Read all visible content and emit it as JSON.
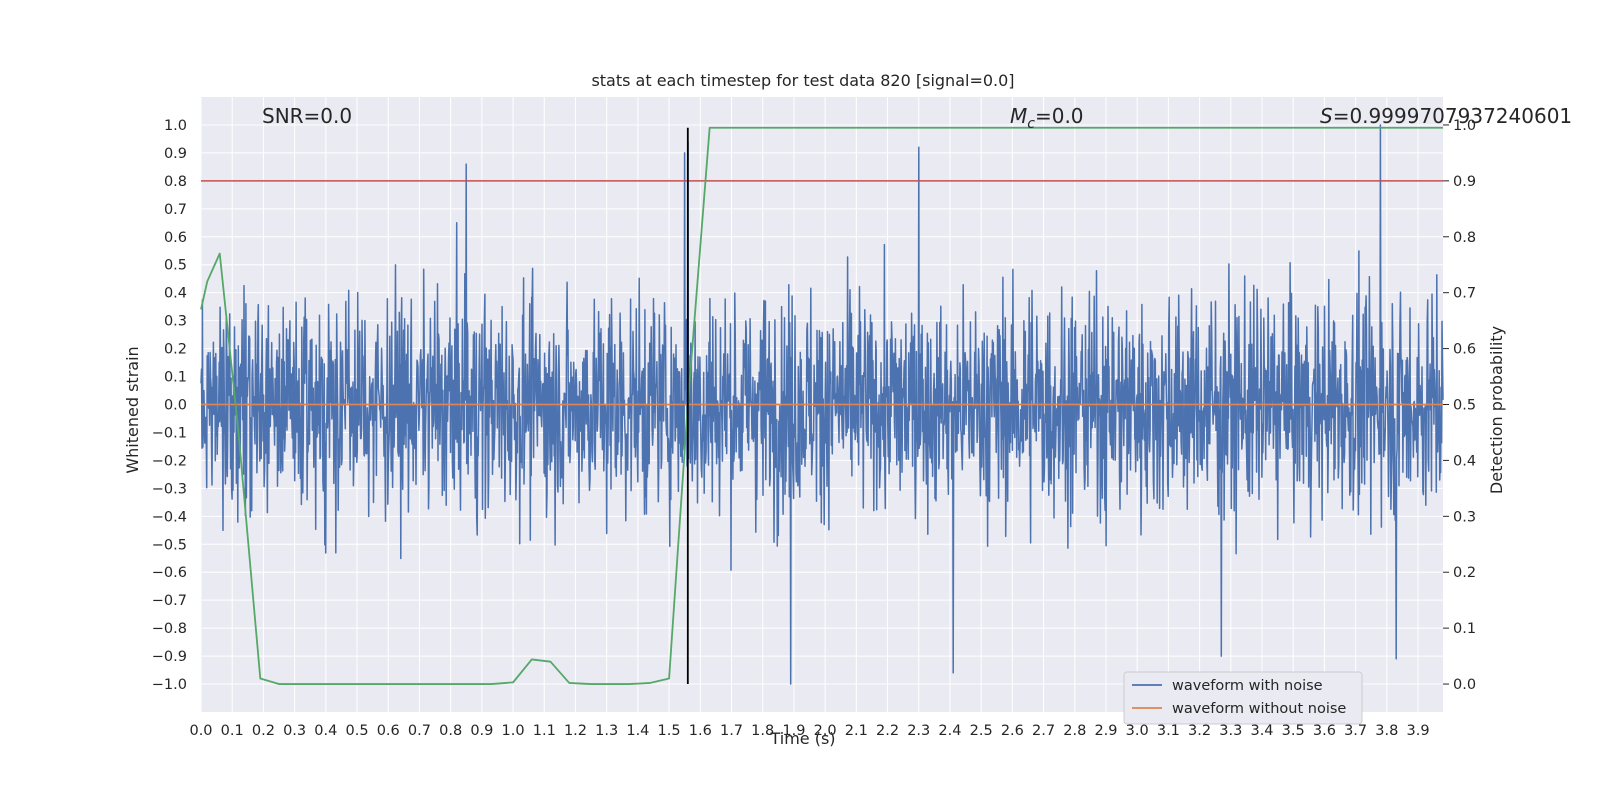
{
  "chart_data": {
    "type": "line",
    "title": "stats at each timestep for test data 820 [signal=0.0]",
    "xlabel": "Time (s)",
    "ylabel": "Whitened strain",
    "y2label": "Detection probability",
    "xlim": [
      0.0,
      3.98
    ],
    "ylim": [
      -1.1,
      1.1
    ],
    "y2lim": [
      -0.05,
      1.05
    ],
    "x_ticks": [
      "0.0",
      "0.1",
      "0.2",
      "0.3",
      "0.4",
      "0.5",
      "0.6",
      "0.7",
      "0.8",
      "0.9",
      "1.0",
      "1.1",
      "1.2",
      "1.3",
      "1.4",
      "1.5",
      "1.6",
      "1.7",
      "1.8",
      "1.9",
      "2.0",
      "2.1",
      "2.2",
      "2.3",
      "2.4",
      "2.5",
      "2.6",
      "2.7",
      "2.8",
      "2.9",
      "3.0",
      "3.1",
      "3.2",
      "3.3",
      "3.4",
      "3.5",
      "3.6",
      "3.7",
      "3.8",
      "3.9"
    ],
    "y_ticks": [
      "1.0",
      "0.9",
      "0.8",
      "0.7",
      "0.6",
      "0.5",
      "0.4",
      "0.3",
      "0.2",
      "0.1",
      "0.0",
      "−0.1",
      "−0.2",
      "−0.3",
      "−0.4",
      "−0.5",
      "−0.6",
      "−0.7",
      "−0.8",
      "−0.9",
      "−1.0"
    ],
    "y2_ticks": [
      "1.0",
      "0.9",
      "0.8",
      "0.7",
      "0.6",
      "0.5",
      "0.4",
      "0.3",
      "0.2",
      "0.1",
      "0.0"
    ],
    "annotations": {
      "snr": "SNR=0.0",
      "mc": "=0.0",
      "mc_symbol": "M",
      "mc_sub": "c",
      "s": "=0.9999707937240601",
      "s_symbol": "S"
    },
    "series": [
      {
        "name": "waveform with noise",
        "color": "#4c72b0",
        "axis": "left",
        "description": "dense whitened noise, amplitude mostly within ±0.5",
        "notable_peaks": [
          {
            "x": 0.85,
            "y": 0.86
          },
          {
            "x": 1.55,
            "y": 0.9
          },
          {
            "x": 1.56,
            "y": 0.94
          },
          {
            "x": 2.3,
            "y": 0.92
          },
          {
            "x": 3.78,
            "y": 1.0
          },
          {
            "x": 1.89,
            "y": -1.0
          },
          {
            "x": 3.27,
            "y": -0.9
          },
          {
            "x": 3.83,
            "y": -0.91
          },
          {
            "x": 2.41,
            "y": -0.96
          }
        ]
      },
      {
        "name": "waveform without noise",
        "color": "#dd8452",
        "axis": "left",
        "x": [
          0.0,
          3.98
        ],
        "y": [
          0.0,
          0.0
        ]
      },
      {
        "name": "detection probability",
        "color": "#55a868",
        "axis": "right",
        "x": [
          0.0,
          0.02,
          0.06,
          0.12,
          0.19,
          0.25,
          0.32,
          0.5,
          0.75,
          0.93,
          1.0,
          1.06,
          1.12,
          1.18,
          1.25,
          1.37,
          1.44,
          1.5,
          1.56,
          1.63,
          3.98
        ],
        "y": [
          0.67,
          0.72,
          0.77,
          0.45,
          0.01,
          0.0,
          0.0,
          0.0,
          0.0,
          0.0,
          0.003,
          0.044,
          0.04,
          0.002,
          0.0,
          0.0,
          0.002,
          0.01,
          0.5,
          0.995,
          0.995
        ]
      },
      {
        "name": "threshold",
        "color": "#c44e52",
        "axis": "right",
        "x": [
          0.0,
          3.98
        ],
        "y": [
          0.9,
          0.9
        ]
      },
      {
        "name": "detection time",
        "color": "#000000",
        "type": "vline",
        "x": 1.56,
        "y_range": [
          -1.0,
          0.99
        ]
      }
    ],
    "legend": {
      "position": "lower-right",
      "entries": [
        "waveform with noise",
        "waveform without noise"
      ]
    },
    "style": {
      "background": "#eaeaf2",
      "grid_color": "#ffffff",
      "grid": true
    }
  }
}
